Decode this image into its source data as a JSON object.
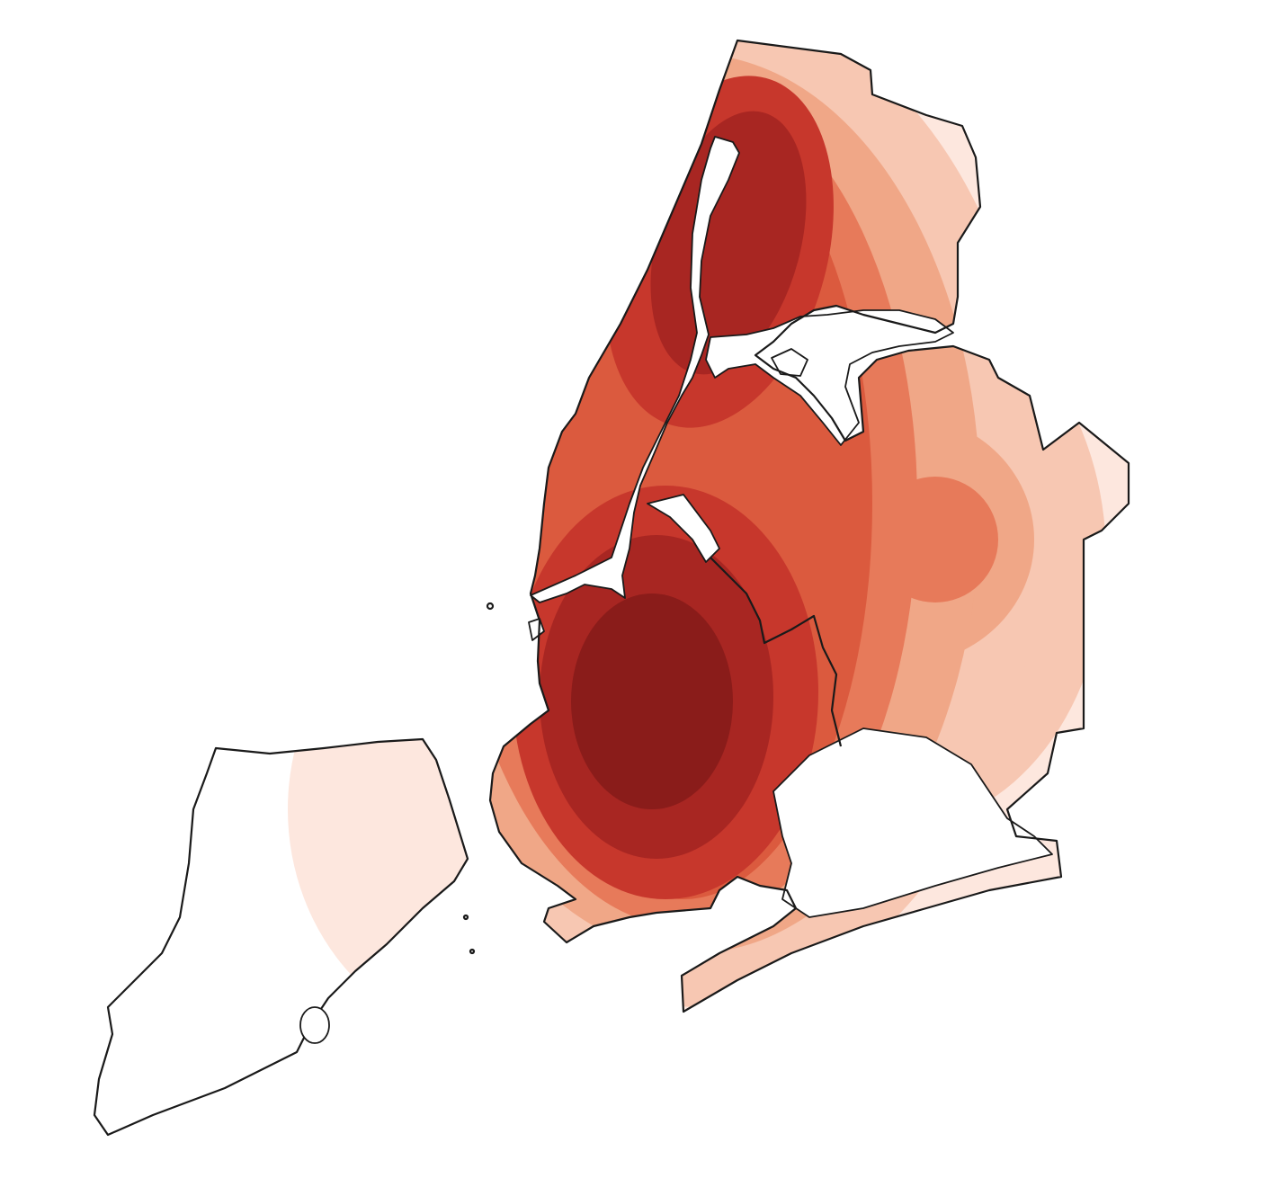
{
  "map": {
    "type": "kernel-density-heatmap",
    "colormap": "Reds",
    "levels": [
      "#fde7de",
      "#f7c7b2",
      "#f0a787",
      "#e77a5a",
      "#db5a3e",
      "#c7372c",
      "#a82622",
      "#8a1c1a"
    ],
    "outline_color": "#1a1a1a",
    "background": "#ffffff",
    "regions": [
      {
        "id": "staten-island"
      },
      {
        "id": "brooklyn-queens-longisland"
      },
      {
        "id": "manhattan-bronx"
      }
    ]
  }
}
